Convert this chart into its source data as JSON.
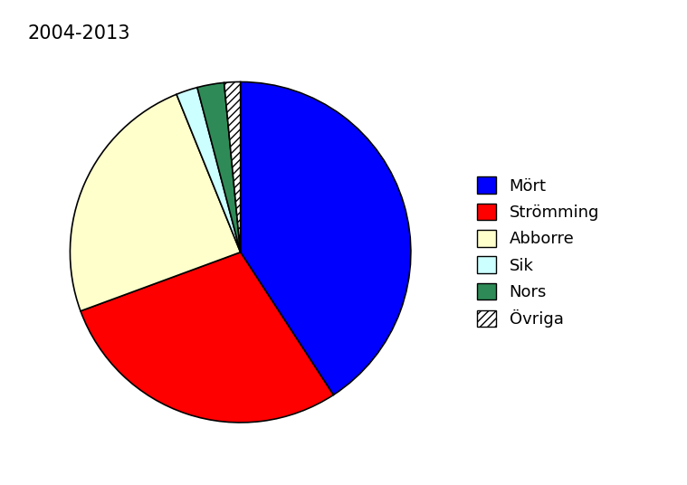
{
  "title": "2004-2013",
  "labels": [
    "Mört",
    "Strömming",
    "Abborre",
    "Sik",
    "Nors",
    "Övriga"
  ],
  "values": [
    40,
    28,
    24,
    2,
    2.5,
    1.5
  ],
  "colors_hex": [
    "#0000ff",
    "#ff0000",
    "#ffffcc",
    "#ccffff",
    "#2e8b57",
    "#ffffff"
  ],
  "hatch_patterns": [
    "",
    "",
    "",
    "",
    "",
    "////"
  ],
  "edgecolor": "#000000",
  "background_color": "#ffffff",
  "title_fontsize": 15,
  "legend_fontsize": 13,
  "startangle": 90
}
